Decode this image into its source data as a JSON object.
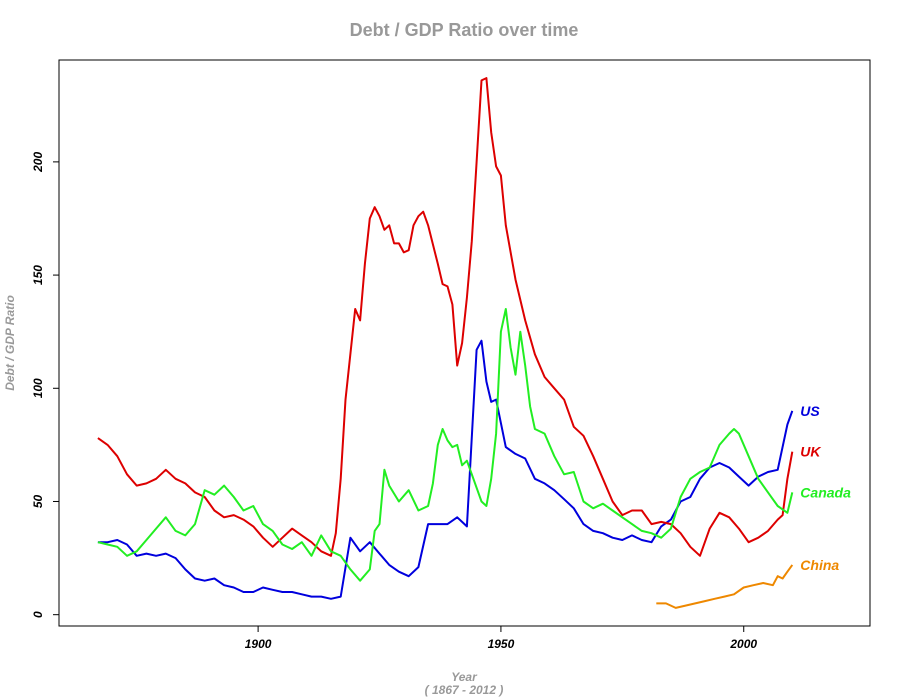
{
  "chart_data": {
    "type": "line",
    "title": "Debt / GDP Ratio over time",
    "xlabel": "Year",
    "xsublabel": "( 1867 - 2012 )",
    "ylabel": "Debt / GDP Ratio",
    "xlim": [
      1859,
      2026
    ],
    "ylim": [
      -5,
      245
    ],
    "xticks": [
      1900,
      1950,
      2000
    ],
    "yticks": [
      0,
      50,
      100,
      150,
      200
    ],
    "grid": false,
    "legend": "inline labels at series ends",
    "series": [
      {
        "name": "US",
        "color": "#0000dd",
        "points": [
          [
            1867,
            32
          ],
          [
            1869,
            32
          ],
          [
            1871,
            33
          ],
          [
            1873,
            31
          ],
          [
            1875,
            26
          ],
          [
            1877,
            27
          ],
          [
            1879,
            26
          ],
          [
            1881,
            27
          ],
          [
            1883,
            25
          ],
          [
            1885,
            20
          ],
          [
            1887,
            16
          ],
          [
            1889,
            15
          ],
          [
            1891,
            16
          ],
          [
            1893,
            13
          ],
          [
            1895,
            12
          ],
          [
            1897,
            10
          ],
          [
            1899,
            10
          ],
          [
            1901,
            12
          ],
          [
            1903,
            11
          ],
          [
            1905,
            10
          ],
          [
            1907,
            10
          ],
          [
            1909,
            9
          ],
          [
            1911,
            8
          ],
          [
            1913,
            8
          ],
          [
            1915,
            7
          ],
          [
            1917,
            8
          ],
          [
            1919,
            34
          ],
          [
            1921,
            28
          ],
          [
            1923,
            32
          ],
          [
            1925,
            27
          ],
          [
            1927,
            22
          ],
          [
            1929,
            19
          ],
          [
            1931,
            17
          ],
          [
            1933,
            21
          ],
          [
            1935,
            40
          ],
          [
            1937,
            40
          ],
          [
            1939,
            40
          ],
          [
            1941,
            43
          ],
          [
            1943,
            39
          ],
          [
            1945,
            117
          ],
          [
            1946,
            121
          ],
          [
            1947,
            103
          ],
          [
            1948,
            94
          ],
          [
            1949,
            95
          ],
          [
            1951,
            74
          ],
          [
            1953,
            71
          ],
          [
            1955,
            69
          ],
          [
            1957,
            60
          ],
          [
            1959,
            58
          ],
          [
            1961,
            55
          ],
          [
            1963,
            51
          ],
          [
            1965,
            47
          ],
          [
            1967,
            40
          ],
          [
            1969,
            37
          ],
          [
            1971,
            36
          ],
          [
            1973,
            34
          ],
          [
            1975,
            33
          ],
          [
            1977,
            35
          ],
          [
            1979,
            33
          ],
          [
            1981,
            32
          ],
          [
            1983,
            39
          ],
          [
            1985,
            42
          ],
          [
            1987,
            50
          ],
          [
            1989,
            52
          ],
          [
            1991,
            60
          ],
          [
            1993,
            65
          ],
          [
            1995,
            67
          ],
          [
            1997,
            65
          ],
          [
            1999,
            61
          ],
          [
            2001,
            57
          ],
          [
            2003,
            61
          ],
          [
            2005,
            63
          ],
          [
            2007,
            64
          ],
          [
            2009,
            84
          ],
          [
            2010,
            90
          ]
        ]
      },
      {
        "name": "UK",
        "color": "#dd0000",
        "points": [
          [
            1867,
            78
          ],
          [
            1869,
            75
          ],
          [
            1871,
            70
          ],
          [
            1873,
            62
          ],
          [
            1875,
            57
          ],
          [
            1877,
            58
          ],
          [
            1879,
            60
          ],
          [
            1881,
            64
          ],
          [
            1883,
            60
          ],
          [
            1885,
            58
          ],
          [
            1887,
            54
          ],
          [
            1889,
            52
          ],
          [
            1891,
            46
          ],
          [
            1893,
            43
          ],
          [
            1895,
            44
          ],
          [
            1897,
            42
          ],
          [
            1899,
            39
          ],
          [
            1901,
            34
          ],
          [
            1903,
            30
          ],
          [
            1905,
            34
          ],
          [
            1907,
            38
          ],
          [
            1909,
            35
          ],
          [
            1911,
            32
          ],
          [
            1913,
            28
          ],
          [
            1915,
            26
          ],
          [
            1916,
            36
          ],
          [
            1917,
            60
          ],
          [
            1918,
            95
          ],
          [
            1920,
            135
          ],
          [
            1921,
            130
          ],
          [
            1922,
            155
          ],
          [
            1923,
            175
          ],
          [
            1924,
            180
          ],
          [
            1925,
            176
          ],
          [
            1926,
            170
          ],
          [
            1927,
            172
          ],
          [
            1928,
            164
          ],
          [
            1929,
            164
          ],
          [
            1930,
            160
          ],
          [
            1931,
            161
          ],
          [
            1932,
            172
          ],
          [
            1933,
            176
          ],
          [
            1934,
            178
          ],
          [
            1935,
            172
          ],
          [
            1937,
            155
          ],
          [
            1938,
            146
          ],
          [
            1939,
            145
          ],
          [
            1940,
            137
          ],
          [
            1941,
            110
          ],
          [
            1942,
            120
          ],
          [
            1943,
            140
          ],
          [
            1944,
            165
          ],
          [
            1945,
            200
          ],
          [
            1946,
            236
          ],
          [
            1947,
            237
          ],
          [
            1948,
            213
          ],
          [
            1949,
            198
          ],
          [
            1950,
            194
          ],
          [
            1951,
            172
          ],
          [
            1953,
            148
          ],
          [
            1955,
            130
          ],
          [
            1957,
            115
          ],
          [
            1959,
            105
          ],
          [
            1961,
            100
          ],
          [
            1963,
            95
          ],
          [
            1965,
            83
          ],
          [
            1967,
            79
          ],
          [
            1969,
            70
          ],
          [
            1971,
            60
          ],
          [
            1973,
            50
          ],
          [
            1975,
            44
          ],
          [
            1977,
            46
          ],
          [
            1979,
            46
          ],
          [
            1981,
            40
          ],
          [
            1983,
            41
          ],
          [
            1985,
            40
          ],
          [
            1987,
            36
          ],
          [
            1989,
            30
          ],
          [
            1991,
            26
          ],
          [
            1993,
            38
          ],
          [
            1995,
            45
          ],
          [
            1997,
            43
          ],
          [
            1999,
            38
          ],
          [
            2001,
            32
          ],
          [
            2003,
            34
          ],
          [
            2005,
            37
          ],
          [
            2007,
            42
          ],
          [
            2008,
            44
          ],
          [
            2009,
            60
          ],
          [
            2010,
            72
          ]
        ]
      },
      {
        "name": "Canada",
        "color": "#22ee22",
        "points": [
          [
            1867,
            32
          ],
          [
            1869,
            31
          ],
          [
            1871,
            30
          ],
          [
            1873,
            26
          ],
          [
            1875,
            28
          ],
          [
            1877,
            33
          ],
          [
            1879,
            38
          ],
          [
            1881,
            43
          ],
          [
            1883,
            37
          ],
          [
            1885,
            35
          ],
          [
            1887,
            40
          ],
          [
            1889,
            55
          ],
          [
            1891,
            53
          ],
          [
            1893,
            57
          ],
          [
            1895,
            52
          ],
          [
            1897,
            46
          ],
          [
            1899,
            48
          ],
          [
            1901,
            40
          ],
          [
            1903,
            37
          ],
          [
            1905,
            31
          ],
          [
            1907,
            29
          ],
          [
            1909,
            32
          ],
          [
            1911,
            26
          ],
          [
            1913,
            35
          ],
          [
            1915,
            28
          ],
          [
            1917,
            26
          ],
          [
            1919,
            20
          ],
          [
            1921,
            15
          ],
          [
            1923,
            20
          ],
          [
            1924,
            37
          ],
          [
            1925,
            40
          ],
          [
            1926,
            64
          ],
          [
            1927,
            57
          ],
          [
            1929,
            50
          ],
          [
            1931,
            55
          ],
          [
            1933,
            46
          ],
          [
            1935,
            48
          ],
          [
            1936,
            58
          ],
          [
            1937,
            75
          ],
          [
            1938,
            82
          ],
          [
            1939,
            77
          ],
          [
            1940,
            74
          ],
          [
            1941,
            75
          ],
          [
            1942,
            66
          ],
          [
            1943,
            68
          ],
          [
            1944,
            62
          ],
          [
            1946,
            50
          ],
          [
            1947,
            48
          ],
          [
            1948,
            60
          ],
          [
            1949,
            80
          ],
          [
            1950,
            125
          ],
          [
            1951,
            135
          ],
          [
            1952,
            118
          ],
          [
            1953,
            106
          ],
          [
            1954,
            125
          ],
          [
            1955,
            110
          ],
          [
            1956,
            92
          ],
          [
            1957,
            82
          ],
          [
            1959,
            80
          ],
          [
            1961,
            70
          ],
          [
            1963,
            62
          ],
          [
            1965,
            63
          ],
          [
            1967,
            50
          ],
          [
            1969,
            47
          ],
          [
            1971,
            49
          ],
          [
            1973,
            46
          ],
          [
            1975,
            43
          ],
          [
            1977,
            40
          ],
          [
            1979,
            37
          ],
          [
            1981,
            36
          ],
          [
            1983,
            34
          ],
          [
            1985,
            38
          ],
          [
            1987,
            52
          ],
          [
            1989,
            60
          ],
          [
            1991,
            63
          ],
          [
            1993,
            65
          ],
          [
            1995,
            75
          ],
          [
            1997,
            80
          ],
          [
            1998,
            82
          ],
          [
            1999,
            80
          ],
          [
            2001,
            70
          ],
          [
            2003,
            60
          ],
          [
            2005,
            54
          ],
          [
            2007,
            48
          ],
          [
            2009,
            45
          ],
          [
            2010,
            54
          ]
        ]
      },
      {
        "name": "China",
        "color": "#ee8800",
        "points": [
          [
            1982,
            5
          ],
          [
            1984,
            5
          ],
          [
            1986,
            3
          ],
          [
            1988,
            4
          ],
          [
            1990,
            5
          ],
          [
            1992,
            6
          ],
          [
            1994,
            7
          ],
          [
            1996,
            8
          ],
          [
            1998,
            9
          ],
          [
            2000,
            12
          ],
          [
            2002,
            13
          ],
          [
            2004,
            14
          ],
          [
            2006,
            13
          ],
          [
            2007,
            17
          ],
          [
            2008,
            16
          ],
          [
            2009,
            19
          ],
          [
            2010,
            22
          ]
        ]
      }
    ]
  }
}
